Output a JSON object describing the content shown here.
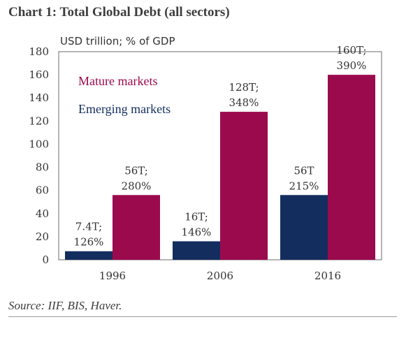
{
  "page": {
    "title": "Chart 1: Total Global Debt (all sectors)",
    "source": "Source: IIF, BIS, Haver."
  },
  "chart_data": {
    "type": "bar",
    "title": "Chart 1: Total Global Debt (all sectors)",
    "ylabel": "USD trillion; % of GDP",
    "xlabel": "",
    "ylim": [
      0,
      180
    ],
    "yticks": [
      "0",
      "20",
      "40",
      "60",
      "80",
      "100",
      "120",
      "140",
      "160",
      "180"
    ],
    "categories": [
      "1996",
      "2006",
      "2016"
    ],
    "series": [
      {
        "name": "Emerging markets",
        "color": "#142d5f",
        "values": [
          7.4,
          16,
          56
        ],
        "labels": [
          [
            "7.4T;",
            "126%"
          ],
          [
            "16T;",
            "146%"
          ],
          [
            "56T",
            "215%"
          ]
        ]
      },
      {
        "name": "Mature markets",
        "color": "#9c0a4e",
        "values": [
          56,
          128,
          160
        ],
        "labels": [
          [
            "56T;",
            "280%"
          ],
          [
            "128T;",
            "348%"
          ],
          [
            "160T;",
            "390%"
          ]
        ]
      }
    ],
    "legend": [
      "Mature markets",
      "Emerging markets"
    ],
    "legend_position": "top-left",
    "grid": false
  }
}
